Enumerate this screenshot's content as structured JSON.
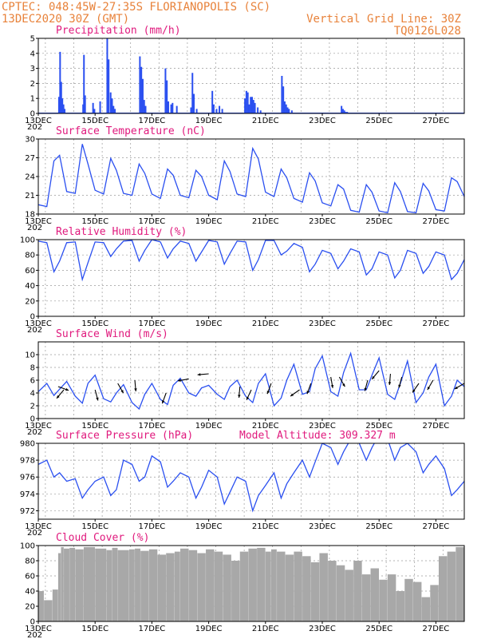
{
  "header": {
    "line1_left": "CPTEC:  048:45W-27:35S  FLORIANOPOLIS (SC)",
    "line2_left": "13DEC2020 30Z (GMT)",
    "line1_right": "Vertical Grid Line: 30Z",
    "line2_right": "TQ0126L028"
  },
  "colors": {
    "header": "#e8823a",
    "panel_title": "#e0197d",
    "series": "#2a4ff0",
    "cloud": "#a8a8a8",
    "wind_arrow": "#000000"
  },
  "x_axis": {
    "start": "13DEC2020 00Z",
    "end": "28DEC2020 00Z",
    "tick_labels": [
      "13DEC",
      "15DEC",
      "17DEC",
      "19DEC",
      "21DEC",
      "23DEC",
      "25DEC",
      "27DEC"
    ],
    "year_label": "202"
  },
  "chart_data": [
    {
      "id": "precip",
      "type": "bar",
      "title": "Precipitation (mm/h)",
      "ylim": [
        0,
        5
      ],
      "yticks": [
        "0",
        "1",
        "2",
        "3",
        "4",
        "5"
      ],
      "x_days": [
        0.7,
        0.74,
        0.78,
        0.82,
        0.86,
        0.9,
        1.55,
        1.58,
        1.62,
        1.9,
        1.95,
        2.15,
        2.4,
        2.45,
        2.52,
        2.57,
        2.62,
        2.67,
        3.55,
        3.6,
        3.65,
        3.7,
        3.75,
        4.45,
        4.5,
        4.55,
        4.65,
        4.7,
        4.85,
        5.35,
        5.4,
        5.45,
        5.55,
        6.1,
        6.15,
        6.25,
        6.35,
        6.45,
        7.25,
        7.3,
        7.35,
        7.4,
        7.45,
        7.5,
        7.55,
        7.6,
        7.7,
        7.8,
        8.55,
        8.6,
        8.65,
        8.7,
        8.75,
        8.8,
        8.9,
        10.65,
        10.7,
        10.75,
        10.8,
        10.85
      ],
      "values": [
        1.1,
        4.1,
        2.1,
        1.0,
        0.6,
        0.3,
        0.6,
        3.9,
        1.2,
        0.7,
        0.3,
        0.8,
        5.0,
        3.6,
        1.4,
        1.0,
        0.5,
        0.3,
        3.8,
        3.1,
        2.3,
        0.9,
        0.5,
        3.0,
        2.2,
        0.8,
        0.6,
        0.7,
        0.5,
        0.4,
        2.7,
        1.3,
        0.3,
        1.5,
        0.6,
        0.3,
        0.5,
        0.3,
        1.0,
        1.5,
        1.4,
        0.6,
        1.1,
        1.1,
        0.9,
        0.7,
        0.4,
        0.2,
        2.5,
        1.8,
        0.8,
        0.6,
        0.4,
        0.3,
        0.2,
        0.5,
        0.3,
        0.2,
        0.1,
        0.1
      ]
    },
    {
      "id": "temp",
      "type": "line",
      "title": "Surface Temperature (nC)",
      "ylim": [
        18,
        30
      ],
      "yticks": [
        "18",
        "21",
        "24",
        "27",
        "30"
      ],
      "x_days": [
        0,
        0.3,
        0.55,
        0.75,
        1.0,
        1.3,
        1.55,
        1.75,
        2.0,
        2.3,
        2.55,
        2.75,
        3.0,
        3.3,
        3.55,
        3.75,
        4.0,
        4.3,
        4.55,
        4.75,
        5.0,
        5.3,
        5.55,
        5.75,
        6.0,
        6.3,
        6.55,
        6.75,
        7.0,
        7.3,
        7.55,
        7.75,
        8.0,
        8.3,
        8.55,
        8.75,
        9.0,
        9.3,
        9.55,
        9.75,
        10.0,
        10.3,
        10.55,
        10.75,
        11.0,
        11.3,
        11.55,
        11.75,
        12.0,
        12.3,
        12.55,
        12.75,
        13.0,
        13.3,
        13.55,
        13.75,
        14.0,
        14.3,
        14.55,
        14.75,
        15.0
      ],
      "values": [
        19.5,
        19.2,
        26.5,
        27.4,
        21.6,
        21.3,
        29.2,
        26.0,
        21.8,
        21.2,
        26.9,
        25.0,
        21.3,
        21.0,
        26.0,
        24.5,
        21.2,
        20.5,
        25.2,
        24.2,
        21.0,
        20.6,
        25.0,
        24.0,
        21.0,
        20.3,
        26.5,
        24.8,
        21.2,
        20.8,
        28.5,
        26.8,
        21.5,
        20.8,
        25.2,
        23.8,
        20.5,
        19.9,
        24.6,
        23.3,
        19.8,
        19.3,
        22.7,
        22.0,
        18.6,
        18.3,
        22.7,
        21.5,
        18.5,
        18.2,
        23.0,
        21.6,
        18.4,
        18.2,
        22.9,
        21.7,
        18.7,
        18.5,
        23.8,
        23.2,
        20.8
      ]
    },
    {
      "id": "rh",
      "type": "line",
      "title": "Relative Humidity (%)",
      "ylim": [
        0,
        100
      ],
      "yticks": [
        "0",
        "20",
        "40",
        "60",
        "80",
        "100"
      ],
      "x_days": [
        0,
        0.3,
        0.55,
        0.75,
        1.0,
        1.3,
        1.55,
        1.75,
        2.0,
        2.3,
        2.55,
        2.75,
        3.0,
        3.3,
        3.55,
        3.75,
        4.0,
        4.3,
        4.55,
        4.75,
        5.0,
        5.3,
        5.55,
        5.75,
        6.0,
        6.3,
        6.55,
        6.75,
        7.0,
        7.3,
        7.55,
        7.75,
        8.0,
        8.3,
        8.55,
        8.75,
        9.0,
        9.3,
        9.55,
        9.75,
        10.0,
        10.3,
        10.55,
        10.75,
        11.0,
        11.3,
        11.55,
        11.75,
        12.0,
        12.3,
        12.55,
        12.75,
        13.0,
        13.3,
        13.55,
        13.75,
        14.0,
        14.3,
        14.55,
        14.75,
        15.0
      ],
      "values": [
        98,
        96,
        58,
        72,
        96,
        97,
        48,
        70,
        97,
        96,
        78,
        88,
        98,
        99,
        72,
        86,
        100,
        97,
        76,
        88,
        98,
        95,
        72,
        84,
        99,
        97,
        68,
        82,
        98,
        97,
        60,
        74,
        99,
        99,
        80,
        85,
        95,
        90,
        58,
        68,
        86,
        82,
        62,
        72,
        88,
        84,
        54,
        62,
        84,
        80,
        50,
        60,
        86,
        82,
        56,
        65,
        84,
        80,
        48,
        56,
        74
      ]
    },
    {
      "id": "wind",
      "type": "line",
      "title": "Surface Wind (m/s)",
      "ylim": [
        0,
        12
      ],
      "yticks": [
        "0",
        "2",
        "4",
        "6",
        "8",
        "10"
      ],
      "x_days": [
        0,
        0.3,
        0.55,
        0.75,
        1.0,
        1.3,
        1.55,
        1.75,
        2.0,
        2.3,
        2.55,
        2.75,
        3.0,
        3.3,
        3.55,
        3.75,
        4.0,
        4.3,
        4.55,
        4.75,
        5.0,
        5.3,
        5.55,
        5.75,
        6.0,
        6.3,
        6.55,
        6.75,
        7.0,
        7.3,
        7.55,
        7.75,
        8.0,
        8.3,
        8.55,
        8.75,
        9.0,
        9.3,
        9.55,
        9.75,
        10.0,
        10.3,
        10.55,
        10.75,
        11.0,
        11.3,
        11.55,
        11.75,
        12.0,
        12.3,
        12.55,
        12.75,
        13.0,
        13.3,
        13.55,
        13.75,
        14.0,
        14.3,
        14.55,
        14.75,
        15.0
      ],
      "values": [
        4.2,
        5.5,
        3.6,
        4.6,
        5.8,
        3.5,
        2.4,
        5.5,
        6.8,
        3.1,
        2.6,
        4.0,
        5.3,
        2.5,
        1.5,
        3.8,
        5.5,
        3.0,
        2.2,
        5.2,
        6.3,
        4.0,
        3.5,
        4.8,
        5.2,
        3.8,
        3.0,
        5.0,
        6.0,
        3.5,
        2.5,
        5.5,
        7.0,
        2.0,
        3.2,
        6.0,
        8.5,
        3.8,
        4.2,
        7.8,
        9.8,
        4.2,
        3.5,
        7.2,
        10.2,
        4.5,
        4.5,
        6.8,
        9.5,
        3.8,
        3.0,
        5.5,
        9.0,
        2.5,
        4.0,
        6.5,
        8.5,
        2.0,
        3.5,
        6.0,
        5.0
      ],
      "arrows": [
        {
          "day": 0.7,
          "speed": 5,
          "dir_deg": 110
        },
        {
          "day": 0.9,
          "speed": 4.5,
          "dir_deg": 220
        },
        {
          "day": 2.0,
          "speed": 4.5,
          "dir_deg": 165
        },
        {
          "day": 2.8,
          "speed": 5.5,
          "dir_deg": 150
        },
        {
          "day": 3.4,
          "speed": 6,
          "dir_deg": 175
        },
        {
          "day": 4.5,
          "speed": 4,
          "dir_deg": 200
        },
        {
          "day": 5.3,
          "speed": 6.2,
          "dir_deg": 260
        },
        {
          "day": 6.0,
          "speed": 7,
          "dir_deg": 265
        },
        {
          "day": 7.1,
          "speed": 5,
          "dir_deg": 185
        },
        {
          "day": 7.5,
          "speed": 4.5,
          "dir_deg": 205
        },
        {
          "day": 8.2,
          "speed": 5.5,
          "dir_deg": 200
        },
        {
          "day": 9.2,
          "speed": 4.5,
          "dir_deg": 235
        },
        {
          "day": 9.6,
          "speed": 5.5,
          "dir_deg": 200
        },
        {
          "day": 10.3,
          "speed": 6.5,
          "dir_deg": 170
        },
        {
          "day": 10.6,
          "speed": 6.5,
          "dir_deg": 150
        },
        {
          "day": 11.6,
          "speed": 6,
          "dir_deg": 195
        },
        {
          "day": 12.0,
          "speed": 7.5,
          "dir_deg": 220
        },
        {
          "day": 12.4,
          "speed": 7,
          "dir_deg": 185
        },
        {
          "day": 12.8,
          "speed": 6.5,
          "dir_deg": 195
        },
        {
          "day": 13.4,
          "speed": 5.5,
          "dir_deg": 215
        },
        {
          "day": 13.9,
          "speed": 6,
          "dir_deg": 210
        },
        {
          "day": 15.0,
          "speed": 5.5,
          "dir_deg": 240
        },
        {
          "day": 15.4,
          "speed": 5,
          "dir_deg": 265
        },
        {
          "day": 15.9,
          "speed": 5,
          "dir_deg": 270
        },
        {
          "day": 16.9,
          "speed": 6,
          "dir_deg": 300
        },
        {
          "day": 17.8,
          "speed": 6,
          "dir_deg": 160
        }
      ]
    },
    {
      "id": "pressure",
      "type": "line",
      "title": "Surface Pressure (hPa)",
      "annotation": "Model Altitude: 309.327 m",
      "ylim": [
        971,
        980
      ],
      "yticks": [
        "972",
        "974",
        "976",
        "978",
        "980"
      ],
      "x_days": [
        0,
        0.3,
        0.55,
        0.75,
        1.0,
        1.3,
        1.55,
        1.75,
        2.0,
        2.3,
        2.55,
        2.75,
        3.0,
        3.3,
        3.55,
        3.75,
        4.0,
        4.3,
        4.55,
        4.75,
        5.0,
        5.3,
        5.55,
        5.75,
        6.0,
        6.3,
        6.55,
        6.75,
        7.0,
        7.3,
        7.55,
        7.75,
        8.0,
        8.3,
        8.55,
        8.75,
        9.0,
        9.3,
        9.55,
        9.75,
        10.0,
        10.3,
        10.55,
        10.75,
        11.0,
        11.3,
        11.55,
        11.75,
        12.0,
        12.3,
        12.55,
        12.75,
        13.0,
        13.3,
        13.55,
        13.75,
        14.0,
        14.3,
        14.55,
        14.75,
        15.0
      ],
      "values": [
        977.5,
        978.0,
        976.0,
        976.5,
        975.5,
        975.8,
        973.5,
        974.5,
        975.5,
        976.0,
        973.8,
        974.5,
        978.0,
        977.5,
        975.5,
        976.0,
        978.5,
        977.8,
        974.8,
        975.5,
        976.5,
        976.0,
        973.5,
        974.8,
        976.8,
        976.0,
        972.8,
        974.2,
        976.0,
        975.5,
        972.0,
        973.8,
        975.0,
        976.5,
        973.5,
        975.2,
        976.5,
        978.0,
        976.0,
        977.8,
        980.0,
        979.5,
        977.5,
        979.0,
        980.5,
        980.0,
        978.0,
        979.5,
        981.0,
        980.5,
        978.0,
        979.5,
        980.0,
        979.0,
        976.5,
        977.5,
        978.5,
        977.0,
        973.8,
        974.5,
        975.5
      ]
    },
    {
      "id": "cloud",
      "type": "area",
      "title": "Cloud Cover (%)",
      "ylim": [
        0,
        100
      ],
      "yticks": [
        "0",
        "20",
        "40",
        "60",
        "80",
        "100"
      ],
      "x_days": [
        0,
        0.2,
        0.5,
        0.7,
        0.8,
        0.9,
        1.1,
        1.3,
        1.6,
        2.0,
        2.4,
        2.6,
        2.8,
        3.2,
        3.4,
        3.6,
        3.9,
        4.2,
        4.5,
        4.8,
        5.0,
        5.3,
        5.6,
        5.9,
        6.2,
        6.5,
        6.8,
        7.1,
        7.4,
        7.7,
        8.0,
        8.2,
        8.4,
        8.7,
        9.0,
        9.3,
        9.6,
        9.9,
        10.2,
        10.5,
        10.8,
        11.1,
        11.4,
        11.7,
        12.0,
        12.3,
        12.6,
        12.9,
        13.2,
        13.5,
        13.8,
        14.1,
        14.4,
        14.7,
        15.0
      ],
      "values": [
        40,
        28,
        42,
        90,
        98,
        96,
        97,
        95,
        98,
        96,
        94,
        97,
        94,
        95,
        96,
        93,
        95,
        88,
        90,
        92,
        96,
        94,
        90,
        95,
        92,
        88,
        80,
        92,
        96,
        97,
        92,
        95,
        92,
        88,
        92,
        86,
        78,
        90,
        80,
        74,
        68,
        80,
        62,
        70,
        55,
        62,
        40,
        56,
        52,
        32,
        48,
        86,
        92,
        98,
        90
      ]
    }
  ]
}
